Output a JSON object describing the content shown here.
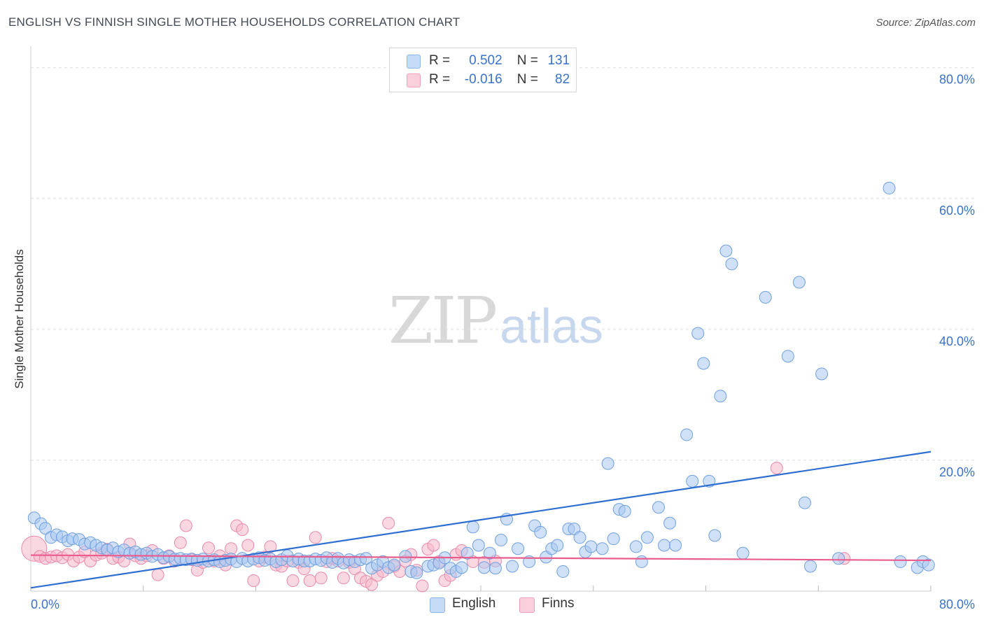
{
  "header": {
    "title": "ENGLISH VS FINNISH SINGLE MOTHER HOUSEHOLDS CORRELATION CHART",
    "source": "Source: ZipAtlas.com"
  },
  "watermark": {
    "zip": "ZIP",
    "atlas": "atlas"
  },
  "legend": {
    "english": {
      "r_label": "R =",
      "r_value": "0.502",
      "n_label": "N =",
      "n_value": "131",
      "color": "#a9c9f1"
    },
    "finns": {
      "r_label": "R =",
      "r_value": "-0.016",
      "n_label": "N =",
      "n_value": "82",
      "color": "#f6b8cb"
    }
  },
  "bottom_legend": {
    "english": "English",
    "finns": "Finns"
  },
  "chart_data": {
    "type": "scatter",
    "title": "ENGLISH VS FINNISH SINGLE MOTHER HOUSEHOLDS CORRELATION CHART",
    "xlabel": "",
    "ylabel": "Single Mother Households",
    "xlim": [
      0,
      80
    ],
    "ylim": [
      0,
      82
    ],
    "x_tick_labels": [
      "0.0%",
      "80.0%"
    ],
    "y_tick_labels": [
      "20.0%",
      "40.0%",
      "60.0%",
      "80.0%"
    ],
    "y_ticks": [
      20,
      40,
      60,
      80
    ],
    "grid": true,
    "legend_position": "top-center",
    "series": [
      {
        "name": "English",
        "color": "#a9c9f1",
        "stroke": "#6fa0df",
        "trend_color": "#2f6fd0",
        "trend": {
          "x0": 0,
          "y0": 0.5,
          "x1": 80,
          "y1": 21.3
        },
        "points": [
          [
            0.3,
            11.2
          ],
          [
            0.9,
            10.3
          ],
          [
            1.3,
            9.6
          ],
          [
            1.8,
            8.2
          ],
          [
            2.3,
            8.6
          ],
          [
            2.8,
            8.3
          ],
          [
            3.3,
            7.7
          ],
          [
            3.7,
            8.0
          ],
          [
            4.3,
            7.9
          ],
          [
            4.8,
            7.2
          ],
          [
            5.3,
            7.4
          ],
          [
            5.8,
            7.0
          ],
          [
            6.3,
            6.6
          ],
          [
            6.8,
            6.3
          ],
          [
            7.3,
            6.6
          ],
          [
            7.8,
            6.0
          ],
          [
            8.3,
            6.3
          ],
          [
            8.8,
            5.8
          ],
          [
            9.3,
            6.0
          ],
          [
            9.8,
            5.6
          ],
          [
            10.3,
            5.8
          ],
          [
            10.8,
            5.3
          ],
          [
            11.3,
            5.6
          ],
          [
            11.8,
            5.1
          ],
          [
            12.3,
            5.3
          ],
          [
            12.8,
            4.9
          ],
          [
            13.3,
            5.0
          ],
          [
            13.8,
            4.8
          ],
          [
            14.3,
            4.9
          ],
          [
            14.8,
            4.7
          ],
          [
            15.3,
            4.9
          ],
          [
            15.8,
            4.6
          ],
          [
            16.3,
            4.8
          ],
          [
            16.8,
            4.5
          ],
          [
            17.3,
            4.7
          ],
          [
            17.8,
            4.9
          ],
          [
            18.3,
            4.5
          ],
          [
            18.8,
            5.0
          ],
          [
            19.3,
            4.6
          ],
          [
            19.8,
            4.9
          ],
          [
            20.3,
            5.1
          ],
          [
            20.8,
            4.7
          ],
          [
            21.3,
            4.9
          ],
          [
            21.8,
            4.5
          ],
          [
            22.3,
            4.8
          ],
          [
            22.8,
            5.4
          ],
          [
            23.3,
            4.6
          ],
          [
            23.8,
            4.9
          ],
          [
            24.3,
            4.6
          ],
          [
            24.8,
            4.6
          ],
          [
            25.3,
            4.9
          ],
          [
            25.8,
            4.7
          ],
          [
            26.3,
            5.1
          ],
          [
            26.8,
            4.4
          ],
          [
            27.3,
            5.0
          ],
          [
            27.8,
            4.3
          ],
          [
            28.3,
            4.8
          ],
          [
            28.8,
            4.5
          ],
          [
            29.3,
            4.8
          ],
          [
            29.8,
            5.0
          ],
          [
            30.3,
            3.5
          ],
          [
            30.8,
            4.0
          ],
          [
            31.3,
            4.5
          ],
          [
            31.8,
            3.6
          ],
          [
            32.3,
            4.0
          ],
          [
            33.3,
            5.3
          ],
          [
            33.8,
            3.0
          ],
          [
            34.3,
            2.8
          ],
          [
            35.3,
            3.8
          ],
          [
            35.8,
            4.0
          ],
          [
            36.3,
            4.3
          ],
          [
            36.8,
            5.1
          ],
          [
            37.3,
            3.5
          ],
          [
            37.8,
            3.0
          ],
          [
            38.3,
            3.6
          ],
          [
            38.8,
            5.8
          ],
          [
            39.3,
            9.8
          ],
          [
            39.8,
            7.0
          ],
          [
            40.3,
            3.6
          ],
          [
            40.8,
            5.8
          ],
          [
            41.3,
            3.5
          ],
          [
            41.8,
            7.8
          ],
          [
            42.3,
            11.0
          ],
          [
            42.8,
            3.8
          ],
          [
            43.3,
            6.5
          ],
          [
            44.3,
            4.5
          ],
          [
            44.8,
            10.0
          ],
          [
            45.3,
            9.0
          ],
          [
            45.8,
            5.2
          ],
          [
            46.3,
            6.5
          ],
          [
            46.8,
            7.0
          ],
          [
            47.3,
            3.0
          ],
          [
            47.8,
            9.5
          ],
          [
            48.3,
            9.5
          ],
          [
            48.8,
            8.2
          ],
          [
            49.3,
            6.0
          ],
          [
            49.8,
            6.8
          ],
          [
            50.8,
            6.5
          ],
          [
            51.3,
            19.5
          ],
          [
            51.8,
            8.0
          ],
          [
            52.3,
            12.5
          ],
          [
            52.8,
            12.2
          ],
          [
            53.8,
            6.8
          ],
          [
            54.3,
            4.5
          ],
          [
            54.8,
            8.2
          ],
          [
            55.8,
            12.8
          ],
          [
            56.3,
            7.0
          ],
          [
            56.8,
            10.4
          ],
          [
            57.3,
            7.0
          ],
          [
            58.3,
            23.9
          ],
          [
            58.8,
            16.8
          ],
          [
            59.3,
            39.4
          ],
          [
            59.8,
            34.8
          ],
          [
            60.3,
            16.8
          ],
          [
            60.8,
            8.5
          ],
          [
            61.3,
            29.8
          ],
          [
            61.8,
            52.0
          ],
          [
            62.3,
            50.0
          ],
          [
            63.3,
            5.8
          ],
          [
            65.3,
            44.9
          ],
          [
            67.3,
            35.9
          ],
          [
            68.3,
            47.2
          ],
          [
            68.8,
            13.5
          ],
          [
            69.3,
            3.8
          ],
          [
            70.3,
            33.2
          ],
          [
            71.8,
            5.0
          ],
          [
            76.3,
            61.6
          ],
          [
            77.3,
            4.5
          ],
          [
            78.8,
            3.6
          ],
          [
            79.3,
            4.5
          ],
          [
            79.8,
            4.0
          ]
        ]
      },
      {
        "name": "Finns",
        "color": "#f6b8cb",
        "stroke": "#e98aaa",
        "trend_color": "#e85d8e",
        "trend": {
          "x0": 0,
          "y0": 5.5,
          "x1": 80,
          "y1": 4.7
        },
        "points": [
          [
            0.3,
            6.5
          ],
          [
            0.8,
            5.3
          ],
          [
            1.3,
            5.0
          ],
          [
            1.8,
            5.2
          ],
          [
            2.3,
            5.4
          ],
          [
            2.8,
            5.1
          ],
          [
            3.3,
            5.6
          ],
          [
            3.8,
            4.6
          ],
          [
            4.3,
            5.2
          ],
          [
            4.8,
            6.0
          ],
          [
            5.3,
            4.6
          ],
          [
            5.8,
            5.5
          ],
          [
            6.3,
            5.8
          ],
          [
            6.8,
            6.4
          ],
          [
            7.3,
            5.0
          ],
          [
            7.8,
            5.2
          ],
          [
            8.3,
            4.6
          ],
          [
            8.8,
            7.2
          ],
          [
            9.3,
            5.4
          ],
          [
            9.8,
            5.0
          ],
          [
            10.3,
            5.4
          ],
          [
            10.8,
            6.2
          ],
          [
            11.3,
            2.5
          ],
          [
            11.8,
            5.0
          ],
          [
            12.3,
            5.4
          ],
          [
            12.8,
            4.6
          ],
          [
            13.3,
            7.4
          ],
          [
            13.8,
            10.0
          ],
          [
            14.3,
            4.8
          ],
          [
            14.8,
            3.2
          ],
          [
            15.3,
            4.4
          ],
          [
            15.8,
            6.6
          ],
          [
            16.3,
            4.6
          ],
          [
            16.8,
            5.4
          ],
          [
            17.3,
            4.0
          ],
          [
            17.8,
            6.5
          ],
          [
            18.3,
            10.0
          ],
          [
            18.8,
            9.4
          ],
          [
            19.3,
            7.0
          ],
          [
            19.8,
            1.6
          ],
          [
            20.3,
            4.6
          ],
          [
            20.8,
            5.2
          ],
          [
            21.3,
            6.8
          ],
          [
            21.8,
            4.0
          ],
          [
            22.3,
            3.8
          ],
          [
            22.8,
            4.6
          ],
          [
            23.3,
            1.6
          ],
          [
            23.8,
            4.4
          ],
          [
            24.3,
            3.4
          ],
          [
            24.8,
            1.6
          ],
          [
            25.3,
            8.2
          ],
          [
            25.8,
            2.0
          ],
          [
            26.3,
            4.5
          ],
          [
            26.8,
            5.0
          ],
          [
            27.3,
            4.6
          ],
          [
            27.8,
            2.0
          ],
          [
            28.3,
            4.4
          ],
          [
            28.8,
            3.4
          ],
          [
            29.3,
            2.0
          ],
          [
            29.8,
            1.5
          ],
          [
            30.3,
            1.0
          ],
          [
            30.8,
            2.4
          ],
          [
            31.3,
            3.0
          ],
          [
            31.8,
            10.4
          ],
          [
            32.3,
            3.8
          ],
          [
            32.8,
            3.0
          ],
          [
            33.3,
            4.6
          ],
          [
            33.8,
            5.6
          ],
          [
            34.3,
            3.2
          ],
          [
            34.8,
            0.8
          ],
          [
            35.3,
            6.4
          ],
          [
            35.8,
            7.0
          ],
          [
            36.3,
            4.5
          ],
          [
            36.8,
            1.6
          ],
          [
            37.3,
            2.4
          ],
          [
            37.8,
            5.6
          ],
          [
            38.3,
            6.2
          ],
          [
            39.3,
            4.5
          ],
          [
            40.3,
            4.4
          ],
          [
            41.3,
            4.6
          ],
          [
            66.3,
            18.8
          ],
          [
            72.3,
            5.0
          ]
        ]
      }
    ]
  }
}
